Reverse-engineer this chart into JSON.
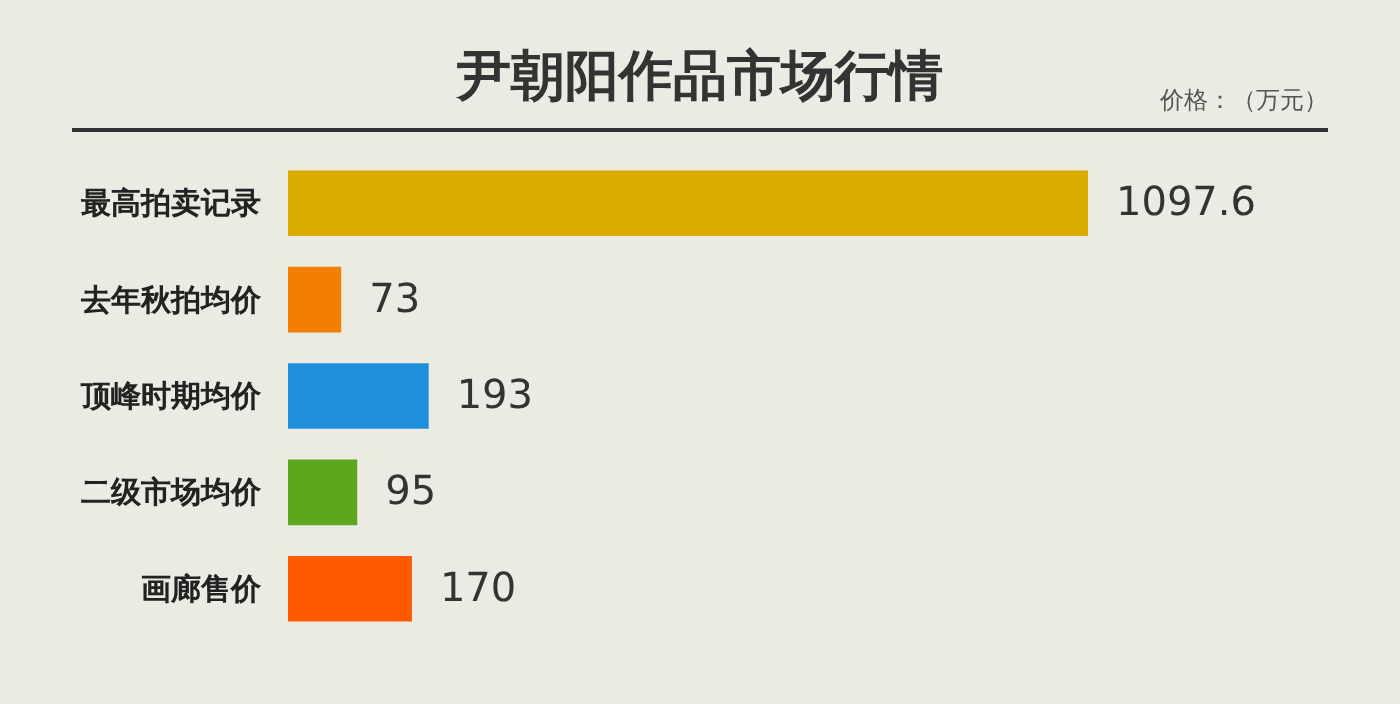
{
  "chart_data": {
    "type": "bar",
    "orientation": "horizontal",
    "title": "尹朝阳作品市场行情",
    "annotations": [
      "价格：（万元）"
    ],
    "categories": [
      "最高拍卖记录",
      "去年秋拍均价",
      "顶峰时期均价",
      "二级市场均价",
      "画廊售价"
    ],
    "values": [
      1097.6,
      73,
      193,
      95,
      170
    ],
    "colors": [
      "#dcab00",
      "#f27f00",
      "#1f8fdc",
      "#5ba71e",
      "#ff5a00"
    ],
    "data_labels": true
  }
}
